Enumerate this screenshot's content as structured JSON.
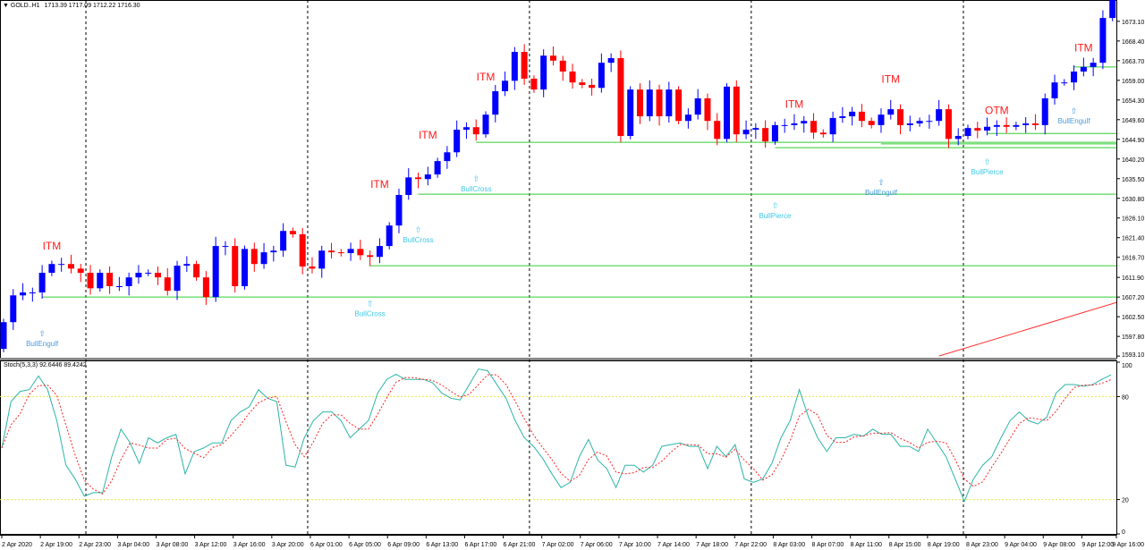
{
  "header": {
    "symbol": "GOLD..H1",
    "ohlc": "1713.39 1717.09 1712.22 1716.30",
    "menu_icon": "triangle-down-icon"
  },
  "indicator": {
    "label": "Stoch(5,3,3) 92.6446 89.4242"
  },
  "colors": {
    "bull": "#0000ff",
    "bear": "#ff0000",
    "support": "#33cc33",
    "trend": "#ff3333",
    "stoch_main": "#2bb5a8",
    "stoch_signal": "#ff2222",
    "level": "#e8e84a",
    "label_result": "#ff1a1a",
    "label_pattern": "#3ec8e8",
    "label_engulf": "#4a9be0"
  },
  "chart_data": [
    {
      "type": "candlestick",
      "ylim": [
        1592.7,
        1678.2
      ],
      "y_ticks": [
        "1673.10",
        "1668.40",
        "1663.70",
        "1659.00",
        "1654.30",
        "1649.60",
        "1644.90",
        "1640.20",
        "1635.50",
        "1630.80",
        "1626.10",
        "1621.40",
        "1616.70",
        "1611.90",
        "1607.20",
        "1602.50",
        "1597.80",
        "1593.10"
      ],
      "x_ticks": [
        "2 Apr 2020",
        "2 Apr 19:00",
        "2 Apr 23:00",
        "3 Apr 04:00",
        "3 Apr 08:00",
        "3 Apr 12:00",
        "3 Apr 16:00",
        "3 Apr 20:00",
        "6 Apr 01:00",
        "6 Apr 05:00",
        "6 Apr 09:00",
        "6 Apr 13:00",
        "6 Apr 17:00",
        "6 Apr 21:00",
        "7 Apr 02:00",
        "7 Apr 06:00",
        "7 Apr 10:00",
        "7 Apr 14:00",
        "7 Apr 18:00",
        "7 Apr 22:00",
        "8 Apr 03:00",
        "8 Apr 07:00",
        "8 Apr 11:00",
        "8 Apr 15:00",
        "8 Apr 19:00",
        "8 Apr 23:00",
        "9 Apr 04:00",
        "9 Apr 08:00",
        "9 Apr 12:00",
        "9 Apr 16:00"
      ],
      "day_separators_bar": [
        9,
        32,
        55,
        78,
        100
      ],
      "first_open": 1594.8,
      "close": [
        1601.2,
        1607.6,
        1608.3,
        1608.3,
        1613.0,
        1615.1,
        1615.1,
        1614.0,
        1613.0,
        1609.3,
        1613.0,
        1609.8,
        1609.8,
        1611.9,
        1613.0,
        1613.0,
        1611.9,
        1608.7,
        1614.7,
        1615.1,
        1611.9,
        1607.2,
        1619.4,
        1619.4,
        1609.8,
        1618.7,
        1615.1,
        1617.9,
        1618.3,
        1623.0,
        1622.2,
        1614.5,
        1614.0,
        1618.3,
        1617.9,
        1617.7,
        1618.7,
        1617.2,
        1616.8,
        1619.4,
        1624.3,
        1631.6,
        1635.8,
        1635.4,
        1636.5,
        1639.7,
        1641.8,
        1647.2,
        1647.8,
        1646.1,
        1650.8,
        1656.4,
        1658.9,
        1665.8,
        1659.4,
        1656.8,
        1664.9,
        1663.7,
        1661.1,
        1658.5,
        1657.9,
        1657.2,
        1663.2,
        1664.3,
        1645.7,
        1656.8,
        1650.4,
        1656.8,
        1650.4,
        1656.8,
        1649.3,
        1650.8,
        1654.7,
        1649.3,
        1645.0,
        1657.5,
        1646.1,
        1647.2,
        1647.6,
        1644.4,
        1648.3,
        1648.3,
        1648.7,
        1649.3,
        1646.5,
        1646.1,
        1650.0,
        1650.4,
        1651.5,
        1649.3,
        1648.3,
        1650.8,
        1652.1,
        1648.3,
        1648.7,
        1649.3,
        1649.3,
        1652.1,
        1645.0,
        1645.7,
        1647.6,
        1647.0,
        1647.9,
        1648.3,
        1647.9,
        1648.3,
        1648.7,
        1648.3,
        1654.7,
        1658.5,
        1658.5,
        1661.1,
        1662.2,
        1663.2,
        1673.9,
        1678.2
      ],
      "support_lines": [
        {
          "from_bar": 4,
          "price": 1607.2
        },
        {
          "from_bar": 38,
          "price": 1614.7
        },
        {
          "from_bar": 43,
          "price": 1631.8
        },
        {
          "from_bar": 49,
          "price": 1644.2
        },
        {
          "from_bar": 80,
          "price": 1642.9
        },
        {
          "from_bar": 91,
          "price": 1643.8
        },
        {
          "from_bar": 102,
          "price": 1646.3
        },
        {
          "from_bar": 111,
          "price": 1662.2
        }
      ],
      "trend_line": {
        "from_bar": 97,
        "from_price": 1593.1,
        "to_bar": 116,
        "to_price": 1605.9
      },
      "result_labels": [
        {
          "text": "ITM",
          "bar": 5,
          "price": 1618.6
        },
        {
          "text": "ITM",
          "bar": 39,
          "price": 1633.3
        },
        {
          "text": "ITM",
          "bar": 44,
          "price": 1645.1
        },
        {
          "text": "ITM",
          "bar": 50,
          "price": 1659.0
        },
        {
          "text": "ITM",
          "bar": 82,
          "price": 1652.4
        },
        {
          "text": "ITM",
          "bar": 92,
          "price": 1658.4
        },
        {
          "text": "OTM",
          "bar": 103,
          "price": 1650.9
        },
        {
          "text": "ITM",
          "bar": 112,
          "price": 1665.9
        }
      ],
      "pattern_labels": [
        {
          "text": "BullEngulf",
          "bar": 4,
          "price": 1595.5
        },
        {
          "text": "BullCross",
          "bar": 38,
          "price": 1602.6
        },
        {
          "text": "BullCross",
          "bar": 43,
          "price": 1620.3
        },
        {
          "text": "BullCross",
          "bar": 49,
          "price": 1632.5
        },
        {
          "text": "BullPierce",
          "bar": 80,
          "price": 1626.0
        },
        {
          "text": "BullEngulf",
          "bar": 91,
          "price": 1631.6
        },
        {
          "text": "BullPierce",
          "bar": 102,
          "price": 1636.5
        },
        {
          "text": "BullEngulf",
          "bar": 111,
          "price": 1648.7
        }
      ],
      "arrow_icon": "up-arrow-icon"
    },
    {
      "type": "line",
      "name": "Stoch(5,3,3)",
      "ylim": [
        0,
        100
      ],
      "y_ticks": [
        "100",
        "80",
        "20",
        "0"
      ],
      "levels": [
        80,
        20
      ],
      "main": [
        50,
        77,
        83,
        84,
        92,
        84,
        66,
        40,
        32,
        22,
        24,
        24,
        45,
        61,
        53,
        41,
        56,
        53,
        56,
        58,
        35,
        48,
        50,
        53,
        53,
        66,
        71,
        74,
        84,
        79,
        77,
        40,
        39,
        56,
        66,
        71,
        71,
        66,
        56,
        61,
        66,
        82,
        90,
        93,
        90,
        90,
        90,
        88,
        82,
        79,
        78,
        87,
        96,
        95,
        87,
        79,
        66,
        56,
        51,
        44,
        35,
        27,
        30,
        45,
        55,
        43,
        38,
        27,
        40,
        40,
        36,
        40,
        51,
        52,
        53,
        51,
        51,
        38,
        51,
        45,
        52,
        32,
        30,
        32,
        41,
        56,
        66,
        84,
        68,
        56,
        48,
        56,
        56,
        58,
        57,
        61,
        58,
        58,
        51,
        51,
        48,
        61,
        53,
        45,
        32,
        19,
        32,
        40,
        45,
        56,
        66,
        71,
        66,
        64,
        68,
        82,
        87,
        87,
        86,
        87,
        90,
        92.6
      ]
    }
  ]
}
